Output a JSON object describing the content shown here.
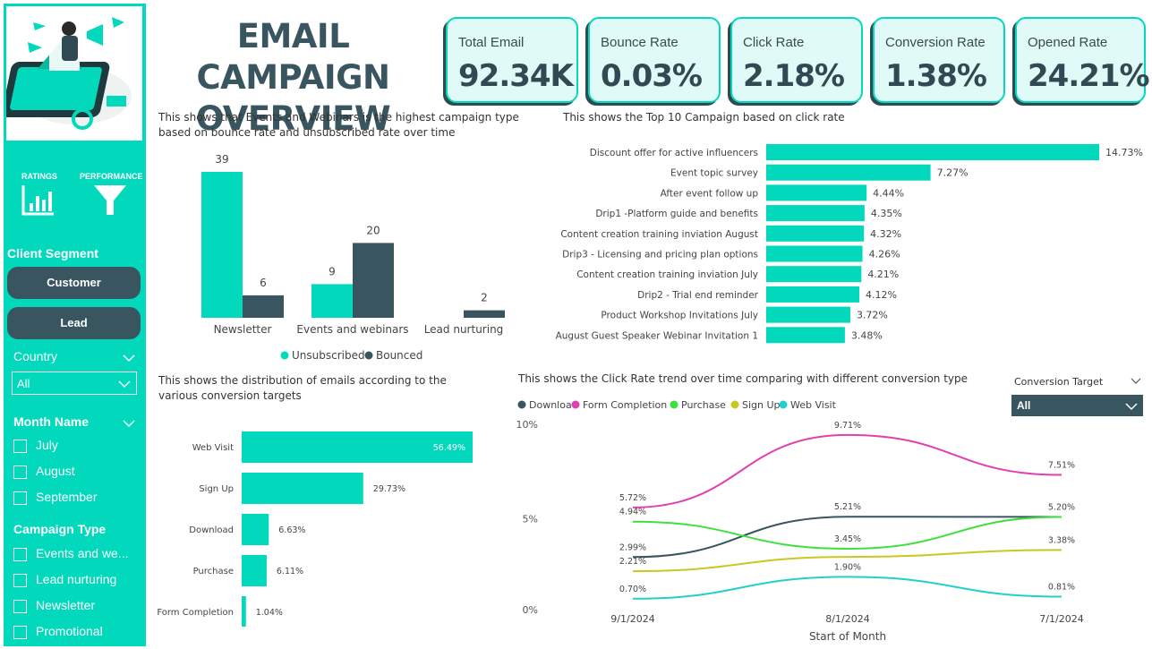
{
  "title_line1": "EMAIL CAMPAIGN",
  "title_line2": "OVERVIEW",
  "kpis": [
    {
      "label": "Total Email",
      "value": "92.34K"
    },
    {
      "label": "Bounce Rate",
      "value": "0.03%"
    },
    {
      "label": "Click Rate",
      "value": "2.18%"
    },
    {
      "label": "Conversion Rate",
      "value": "1.38%"
    },
    {
      "label": "Opened Rate",
      "value": "24.21%"
    }
  ],
  "sidebar": {
    "nav": [
      {
        "label": "RATINGS",
        "icon": "bar-chart-icon"
      },
      {
        "label": "PERFORMANCE",
        "icon": "funnel-icon"
      }
    ],
    "segment_title": "Client Segment",
    "segments": [
      "Customer",
      "Lead"
    ],
    "country": {
      "title": "Country",
      "selected": "All"
    },
    "month": {
      "title": "Month Name",
      "items": [
        "July",
        "August",
        "September"
      ]
    },
    "campaign": {
      "title": "Campaign Type",
      "items": [
        "Events and we...",
        "Lead nurturing",
        "Newsletter",
        "Promotional"
      ]
    }
  },
  "descriptions": {
    "bounce": "This shows that Events and Webinars is the highest campaign type based on bounce rate and unsubscribed rate over time",
    "top10": "This shows the Top 10 Campaign based on click rate",
    "distribution": "This shows the distribution of emails according to the various conversion targets",
    "trend": "This shows the Click Rate trend over time comparing with different conversion type"
  },
  "conversion_filter": {
    "title": "Conversion Target",
    "selected": "All"
  },
  "colors": {
    "accent": "#02d9bc",
    "dark": "#395660",
    "download": "#395660",
    "form": "#e040b0",
    "purchase": "#3ee03e",
    "signup": "#c8c820",
    "webvisit": "#20d0cc"
  },
  "chart_data": [
    {
      "type": "bar",
      "categories": [
        "Newsletter",
        "Events and webinars",
        "Lead nurturing"
      ],
      "series": [
        {
          "name": "Unsubscribed",
          "values": [
            39,
            9,
            null
          ]
        },
        {
          "name": "Bounced",
          "values": [
            6,
            20,
            2
          ]
        }
      ],
      "legend": "bottom"
    },
    {
      "type": "bar",
      "orientation": "horizontal",
      "categories": [
        "Discount offer for active influencers",
        "Event topic survey",
        "After event follow up",
        "Drip1 -Platform guide and benefits",
        "Content creation training inviation August",
        "Drip3 - Licensing and pricing plan options",
        "Content creation training inviation July",
        "Drip2 - Trial end reminder",
        "Product Workshop Invitations July",
        "August Guest Speaker Webinar Invitation 1"
      ],
      "values": [
        14.73,
        7.27,
        4.44,
        4.35,
        4.32,
        4.26,
        4.21,
        4.12,
        3.72,
        3.48
      ],
      "labels": [
        "14.73%",
        "7.27%",
        "4.44%",
        "4.35%",
        "4.32%",
        "4.26%",
        "4.21%",
        "4.12%",
        "3.72%",
        "3.48%"
      ]
    },
    {
      "type": "bar",
      "orientation": "horizontal",
      "categories": [
        "Web Visit",
        "Sign Up",
        "Download",
        "Purchase",
        "Form Completion"
      ],
      "values": [
        56.49,
        29.73,
        6.63,
        6.11,
        1.04
      ],
      "labels": [
        "56.49%",
        "29.73%",
        "6.63%",
        "6.11%",
        "1.04%"
      ]
    },
    {
      "type": "line",
      "x": [
        "9/1/2024",
        "8/1/2024",
        "7/1/2024"
      ],
      "xlabel": "Start of Month",
      "y_ticks": [
        "10%",
        "5%",
        "0%"
      ],
      "ylim": [
        0,
        10
      ],
      "legend": "top-left",
      "series": [
        {
          "name": "Download",
          "values": [
            2.99,
            5.21,
            5.2
          ],
          "labels": [
            "2.99%",
            "5.21%",
            "5.20%"
          ],
          "color": "#395660"
        },
        {
          "name": "Form Completion",
          "values": [
            5.72,
            9.71,
            7.51
          ],
          "labels": [
            "5.72%",
            "9.71%",
            "7.51%"
          ],
          "color": "#e040b0"
        },
        {
          "name": "Purchase",
          "values": [
            4.94,
            3.45,
            5.2
          ],
          "labels": [
            "4.94%",
            "3.45%",
            ""
          ],
          "color": "#3ee03e"
        },
        {
          "name": "Sign Up",
          "values": [
            2.21,
            3.0,
            3.38
          ],
          "labels": [
            "2.21%",
            "",
            "3.38%"
          ],
          "color": "#c8c820"
        },
        {
          "name": "Web Visit",
          "values": [
            0.7,
            1.9,
            0.81
          ],
          "labels": [
            "0.70%",
            "1.90%",
            "0.81%"
          ],
          "color": "#20d0cc"
        }
      ]
    }
  ]
}
